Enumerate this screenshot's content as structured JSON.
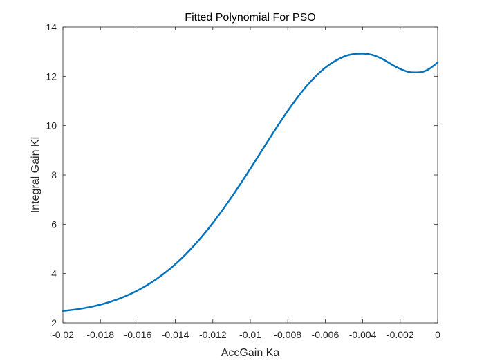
{
  "chart_data": {
    "type": "line",
    "title": "Fitted Polynomial For PSO",
    "xlabel": "AccGain Ka",
    "ylabel": "Integral Gain Ki",
    "xlim": [
      -0.02,
      0
    ],
    "ylim": [
      2,
      14
    ],
    "xticks": [
      -0.02,
      -0.018,
      -0.016,
      -0.014,
      -0.012,
      -0.01,
      -0.008,
      -0.006,
      -0.004,
      -0.002,
      0
    ],
    "xtick_labels": [
      "-0.02",
      "-0.018",
      "-0.016",
      "-0.014",
      "-0.012",
      "-0.01",
      "-0.008",
      "-0.006",
      "-0.004",
      "-0.002",
      "0"
    ],
    "yticks": [
      2,
      4,
      6,
      8,
      10,
      12,
      14
    ],
    "ytick_labels": [
      "2",
      "4",
      "6",
      "8",
      "10",
      "12",
      "14"
    ],
    "grid": false,
    "legend": "none",
    "series": [
      {
        "color": "#0072BD",
        "x": [
          -0.02,
          -0.019,
          -0.018,
          -0.017,
          -0.016,
          -0.015,
          -0.014,
          -0.013,
          -0.012,
          -0.011,
          -0.01,
          -0.009,
          -0.008,
          -0.007,
          -0.006,
          -0.005,
          -0.0045,
          -0.004,
          -0.0035,
          -0.003,
          -0.0025,
          -0.002,
          -0.0015,
          -0.001,
          -0.0005,
          0
        ],
        "y": [
          2.48,
          2.58,
          2.74,
          2.98,
          3.32,
          3.78,
          4.38,
          5.14,
          6.05,
          7.1,
          8.25,
          9.45,
          10.6,
          11.6,
          12.35,
          12.8,
          12.9,
          12.92,
          12.87,
          12.72,
          12.5,
          12.3,
          12.17,
          12.16,
          12.28,
          12.56
        ]
      }
    ]
  }
}
